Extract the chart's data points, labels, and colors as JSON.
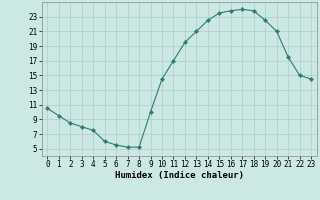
{
  "x": [
    0,
    1,
    2,
    3,
    4,
    5,
    6,
    7,
    8,
    9,
    10,
    11,
    12,
    13,
    14,
    15,
    16,
    17,
    18,
    19,
    20,
    21,
    22,
    23
  ],
  "y": [
    10.5,
    9.5,
    8.5,
    8.0,
    7.5,
    6.0,
    5.5,
    5.2,
    5.2,
    10.0,
    14.5,
    17.0,
    19.5,
    21.0,
    22.5,
    23.5,
    23.8,
    24.0,
    23.8,
    22.5,
    21.0,
    17.5,
    15.0,
    14.5
  ],
  "line_color": "#2e7d6e",
  "marker": "D",
  "marker_size": 2,
  "bg_color": "#cce8e4",
  "grid_color": "#aeccca",
  "xlabel": "Humidex (Indice chaleur)",
  "xlim": [
    -0.5,
    23.5
  ],
  "ylim": [
    4,
    25
  ],
  "yticks": [
    5,
    7,
    9,
    11,
    13,
    15,
    17,
    19,
    21,
    23
  ],
  "xticks": [
    0,
    1,
    2,
    3,
    4,
    5,
    6,
    7,
    8,
    9,
    10,
    11,
    12,
    13,
    14,
    15,
    16,
    17,
    18,
    19,
    20,
    21,
    22,
    23
  ],
  "label_fontsize": 6.5,
  "tick_fontsize": 5.5
}
